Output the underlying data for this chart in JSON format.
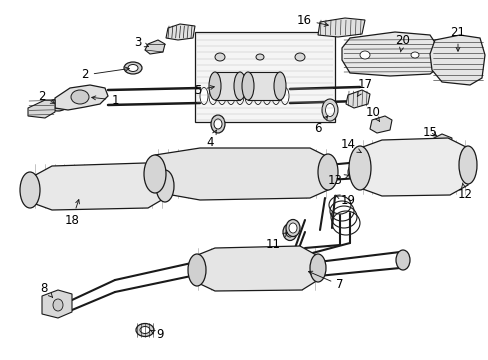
{
  "background_color": "#ffffff",
  "line_color": "#1a1a1a",
  "text_color": "#000000",
  "figsize": [
    4.89,
    3.6
  ],
  "dpi": 100,
  "label_fontsize": 8.5
}
